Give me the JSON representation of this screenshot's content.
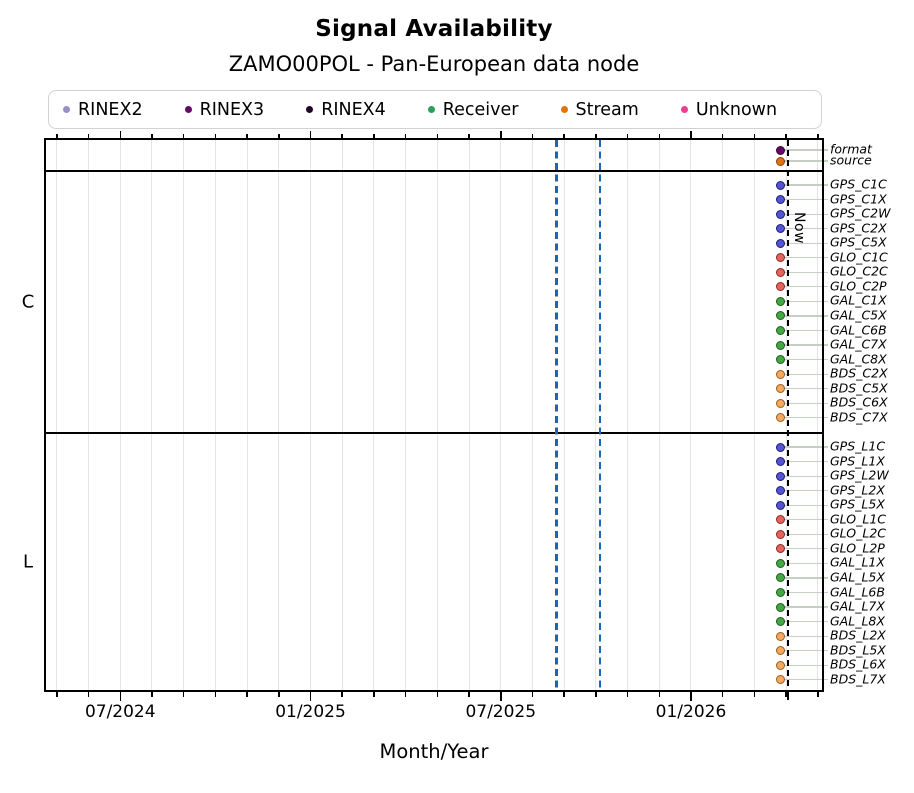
{
  "header": {
    "title": "Signal Availability",
    "subtitle": "ZAMO00POL - Pan-European data node"
  },
  "legend": {
    "items": [
      {
        "label": "RINEX2",
        "color": "#988fc4"
      },
      {
        "label": "RINEX3",
        "color": "#650b65"
      },
      {
        "label": "RINEX4",
        "color": "#21062a"
      },
      {
        "label": "Receiver",
        "color": "#2ba05c"
      },
      {
        "label": "Stream",
        "color": "#e2720e"
      },
      {
        "label": "Unknown",
        "color": "#ee3d8e"
      }
    ]
  },
  "chart_data": {
    "type": "scatter",
    "title": "Signal Availability",
    "subtitle": "ZAMO00POL - Pan-European data node",
    "xlabel": "Month/Year",
    "x_range": [
      "2024-04-21",
      "2026-05-05"
    ],
    "x_tick_labels": [
      "07/2024",
      "01/2025",
      "07/2025",
      "01/2026"
    ],
    "grid": {
      "vertical": "monthly",
      "color": "#e5e5e5"
    },
    "legend_position": "top",
    "now_line": {
      "label": "Now",
      "date": "2026-04-03",
      "color": "#000000",
      "style": "dashed"
    },
    "event_lines": [
      {
        "date": "2025-08-24",
        "color": "#1767b6",
        "style": "dashed"
      },
      {
        "date": "2025-10-05",
        "color": "#1767b6",
        "style": "dashed"
      }
    ],
    "marker_date": "2026-03-26",
    "marker_note": "each row has a single availability marker just before the Now line",
    "colors": {
      "GPS": {
        "fill": "#5453d0",
        "edge": "#1c1c7a"
      },
      "GLO": {
        "fill": "#e4635d",
        "edge": "#8c2723"
      },
      "GAL": {
        "fill": "#43a843",
        "edge": "#1d5c1d"
      },
      "BDS": {
        "fill": "#f4a963",
        "edge": "#9d5b16"
      },
      "format": {
        "fill": "#650b65",
        "edge": "#3a053a"
      },
      "source": {
        "fill": "#e2720e",
        "edge": "#87450a"
      }
    },
    "groups": [
      {
        "label": "",
        "rows": [
          {
            "label": "format",
            "system": "format",
            "category": "RINEX3"
          },
          {
            "label": "source",
            "system": "source",
            "category": "Stream"
          }
        ]
      },
      {
        "label": "C",
        "rows": [
          {
            "label": "GPS_C1C",
            "system": "GPS"
          },
          {
            "label": "GPS_C1X",
            "system": "GPS"
          },
          {
            "label": "GPS_C2W",
            "system": "GPS"
          },
          {
            "label": "GPS_C2X",
            "system": "GPS"
          },
          {
            "label": "GPS_C5X",
            "system": "GPS"
          },
          {
            "label": "GLO_C1C",
            "system": "GLO"
          },
          {
            "label": "GLO_C2C",
            "system": "GLO"
          },
          {
            "label": "GLO_C2P",
            "system": "GLO"
          },
          {
            "label": "GAL_C1X",
            "system": "GAL"
          },
          {
            "label": "GAL_C5X",
            "system": "GAL"
          },
          {
            "label": "GAL_C6B",
            "system": "GAL"
          },
          {
            "label": "GAL_C7X",
            "system": "GAL"
          },
          {
            "label": "GAL_C8X",
            "system": "GAL"
          },
          {
            "label": "BDS_C2X",
            "system": "BDS"
          },
          {
            "label": "BDS_C5X",
            "system": "BDS"
          },
          {
            "label": "BDS_C6X",
            "system": "BDS"
          },
          {
            "label": "BDS_C7X",
            "system": "BDS"
          }
        ]
      },
      {
        "label": "L",
        "rows": [
          {
            "label": "GPS_L1C",
            "system": "GPS"
          },
          {
            "label": "GPS_L1X",
            "system": "GPS"
          },
          {
            "label": "GPS_L2W",
            "system": "GPS"
          },
          {
            "label": "GPS_L2X",
            "system": "GPS"
          },
          {
            "label": "GPS_L5X",
            "system": "GPS"
          },
          {
            "label": "GLO_L1C",
            "system": "GLO"
          },
          {
            "label": "GLO_L2C",
            "system": "GLO"
          },
          {
            "label": "GLO_L2P",
            "system": "GLO"
          },
          {
            "label": "GAL_L1X",
            "system": "GAL"
          },
          {
            "label": "GAL_L5X",
            "system": "GAL"
          },
          {
            "label": "GAL_L6B",
            "system": "GAL"
          },
          {
            "label": "GAL_L7X",
            "system": "GAL"
          },
          {
            "label": "GAL_L8X",
            "system": "GAL"
          },
          {
            "label": "BDS_L2X",
            "system": "BDS"
          },
          {
            "label": "BDS_L5X",
            "system": "BDS"
          },
          {
            "label": "BDS_L6X",
            "system": "BDS"
          },
          {
            "label": "BDS_L7X",
            "system": "BDS"
          }
        ]
      }
    ]
  }
}
